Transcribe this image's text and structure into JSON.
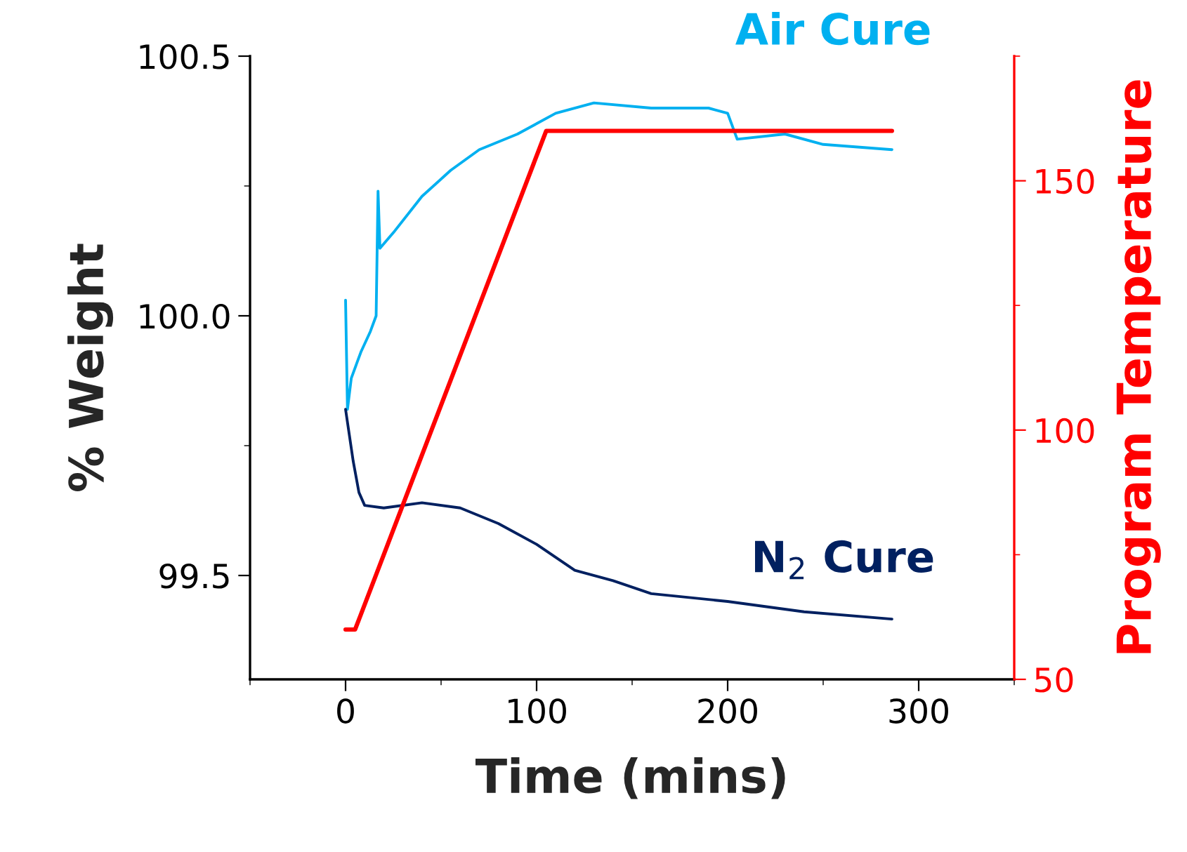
{
  "chart_data": {
    "type": "line",
    "xlabel": "Time (mins)",
    "ylabel": "% Weight",
    "y2label": "Program Temperature",
    "xlim": [
      -50,
      350
    ],
    "xticks": [
      0,
      100,
      200,
      300
    ],
    "ylim": [
      99.3,
      100.5
    ],
    "yticks": [
      {
        "value": 99.5,
        "label": "99.5"
      },
      {
        "value": 100.0,
        "label": "100.0"
      },
      {
        "value": 100.5,
        "label": "100.5"
      }
    ],
    "y2lim": [
      50,
      175
    ],
    "y2ticks": [
      50,
      100,
      150
    ],
    "grid": false,
    "legend": false,
    "marker": "none",
    "line_style": "solid",
    "series": [
      {
        "name": "Air Cure",
        "color": "#00b0f0",
        "x": [
          0,
          1,
          3,
          8,
          13,
          16,
          17,
          18,
          25,
          40,
          55,
          70,
          90,
          110,
          130,
          160,
          190,
          200,
          205,
          230,
          250,
          286
        ],
        "values": [
          100.03,
          99.82,
          99.88,
          99.93,
          99.97,
          100.0,
          100.24,
          100.13,
          100.16,
          100.23,
          100.28,
          100.32,
          100.35,
          100.39,
          100.41,
          100.4,
          100.4,
          100.39,
          100.34,
          100.35,
          100.33,
          100.32
        ]
      },
      {
        "name": "N$_{2}$ Cure",
        "color": "#002060",
        "x": [
          0,
          2,
          4,
          7,
          10,
          20,
          40,
          60,
          80,
          100,
          120,
          140,
          160,
          200,
          240,
          286
        ],
        "values": [
          99.82,
          99.77,
          99.72,
          99.66,
          99.635,
          99.63,
          99.64,
          99.63,
          99.6,
          99.56,
          99.51,
          99.49,
          99.465,
          99.45,
          99.43,
          99.416
        ]
      },
      {
        "color": "#ff0000",
        "axis": "y2",
        "x": [
          0,
          5,
          105,
          286
        ],
        "values": [
          60,
          60,
          160,
          160
        ]
      }
    ]
  }
}
